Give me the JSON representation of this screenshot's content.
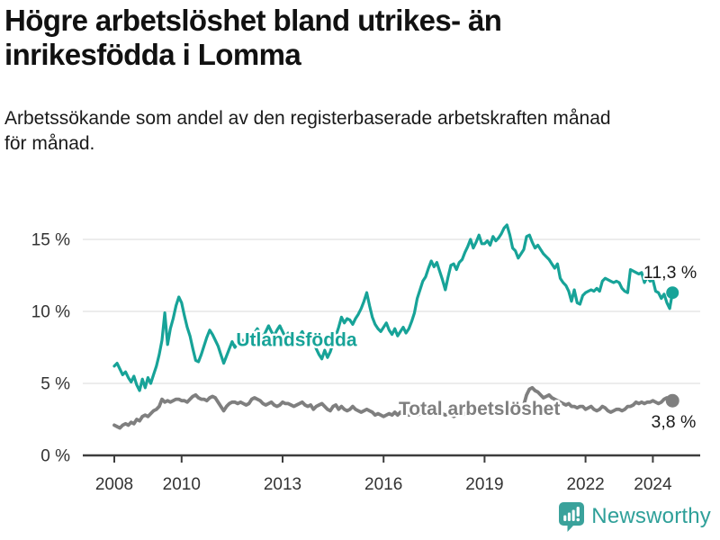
{
  "header": {
    "title_lines": [
      "Högre arbetslöshet bland utrikes- än",
      "inrikesfödda i Lomma"
    ],
    "subtitle_lines": [
      "Arbetssökande som andel av den registerbaserade arbetskraften månad",
      "för månad."
    ]
  },
  "branding": {
    "name": "Newsworthy",
    "color": "#2fa099",
    "icon": "newsworthy-speech-bubble-bar-chart-icon"
  },
  "chart_data": {
    "type": "line",
    "title": "Högre arbetslöshet bland utrikes- än inrikesfödda i Lomma",
    "subtitle": "Arbetssökande som andel av den registerbaserade arbetskraften månad för månad.",
    "x_base_year": 2008,
    "x_step_months": 1,
    "x_ticks": [
      2008,
      2010,
      2013,
      2016,
      2019,
      2022,
      2024
    ],
    "x_tick_labels": [
      "2008",
      "2010",
      "2013",
      "2016",
      "2019",
      "2022",
      "2024"
    ],
    "y_ticks": [
      0,
      5,
      10,
      15
    ],
    "y_tick_labels": [
      "0 %",
      "5 %",
      "10 %",
      "15 %"
    ],
    "ylim": [
      0,
      16.8
    ],
    "grid": true,
    "legend_position": "inline-labels",
    "series": [
      {
        "name": "Utlandsfödda",
        "color": "#17a398",
        "end_label": "11,3 %",
        "end_value": 11.3,
        "label_x_year": 2011.62,
        "label_y_pct": 7.6,
        "end_label_x_year": 2023.72,
        "end_label_y_pct": 12.3,
        "values": [
          6.2,
          6.4,
          6.0,
          5.6,
          5.8,
          5.4,
          5.1,
          5.5,
          4.9,
          4.5,
          5.3,
          4.7,
          5.4,
          5.0,
          5.6,
          6.2,
          7.0,
          8.0,
          9.9,
          7.7,
          8.8,
          9.5,
          10.4,
          11.0,
          10.6,
          9.7,
          8.9,
          8.3,
          7.4,
          6.6,
          6.5,
          7.0,
          7.6,
          8.2,
          8.7,
          8.4,
          8.0,
          7.6,
          7.0,
          6.4,
          6.9,
          7.4,
          7.9,
          7.5,
          7.8,
          8.1,
          7.9,
          8.2,
          8.4,
          8.1,
          8.5,
          8.8,
          8.5,
          8.2,
          8.6,
          9.0,
          8.6,
          8.3,
          8.7,
          9.0,
          8.6,
          8.2,
          8.5,
          8.1,
          8.4,
          8.0,
          8.3,
          8.6,
          8.2,
          8.5,
          8.1,
          7.9,
          7.4,
          7.0,
          6.7,
          7.3,
          6.8,
          7.2,
          7.8,
          8.3,
          8.9,
          9.6,
          9.2,
          9.5,
          9.4,
          9.1,
          9.5,
          9.8,
          10.2,
          10.7,
          11.3,
          10.4,
          9.6,
          9.1,
          8.8,
          8.6,
          8.9,
          9.2,
          8.7,
          8.4,
          8.8,
          8.3,
          8.6,
          8.9,
          8.5,
          8.8,
          9.3,
          9.9,
          10.9,
          11.5,
          12.1,
          12.4,
          13.0,
          13.5,
          13.1,
          13.4,
          12.8,
          12.2,
          11.5,
          12.4,
          13.2,
          13.3,
          12.9,
          13.4,
          13.6,
          14.1,
          14.5,
          15.0,
          14.4,
          14.8,
          15.3,
          14.7,
          14.7,
          14.9,
          14.6,
          15.2,
          14.9,
          15.1,
          15.4,
          15.8,
          16.0,
          15.3,
          14.4,
          14.2,
          13.7,
          14.0,
          14.3,
          15.2,
          15.3,
          14.8,
          14.4,
          14.6,
          14.3,
          14.0,
          13.8,
          13.6,
          13.3,
          13.0,
          13.3,
          12.3,
          12.0,
          11.8,
          11.4,
          10.7,
          11.5,
          10.6,
          10.5,
          11.1,
          11.3,
          11.4,
          11.5,
          11.4,
          11.6,
          11.4,
          12.1,
          12.3,
          12.2,
          12.1,
          12.0,
          12.1,
          12.0,
          11.6,
          11.4,
          11.3,
          12.9,
          12.8,
          12.7,
          12.6,
          12.7,
          12.0,
          12.4,
          12.1,
          12.2,
          11.4,
          11.3,
          10.9,
          11.2,
          10.6,
          10.2,
          11.3
        ]
      },
      {
        "name": "Total arbetslöshet",
        "color": "#7f7f7f",
        "end_label": "3,8 %",
        "end_value": 3.8,
        "label_x_year": 2016.45,
        "label_y_pct": 2.82,
        "end_label_x_year": 2023.95,
        "end_label_y_pct": 1.95,
        "values": [
          2.1,
          2.0,
          1.9,
          2.1,
          2.2,
          2.1,
          2.3,
          2.2,
          2.5,
          2.4,
          2.7,
          2.8,
          2.7,
          2.9,
          3.1,
          3.2,
          3.4,
          3.9,
          3.7,
          3.8,
          3.7,
          3.8,
          3.9,
          3.9,
          3.8,
          3.8,
          3.7,
          3.9,
          4.1,
          4.2,
          4.0,
          3.9,
          3.9,
          3.8,
          4.0,
          4.1,
          4.0,
          3.7,
          3.4,
          3.1,
          3.4,
          3.6,
          3.7,
          3.7,
          3.6,
          3.7,
          3.6,
          3.5,
          3.6,
          3.9,
          4.0,
          3.9,
          3.8,
          3.6,
          3.5,
          3.6,
          3.7,
          3.5,
          3.4,
          3.5,
          3.7,
          3.6,
          3.6,
          3.5,
          3.4,
          3.5,
          3.6,
          3.7,
          3.5,
          3.4,
          3.5,
          3.2,
          3.4,
          3.5,
          3.6,
          3.4,
          3.2,
          3.1,
          3.4,
          3.5,
          3.2,
          3.4,
          3.2,
          3.1,
          3.2,
          3.4,
          3.2,
          3.1,
          3.0,
          3.1,
          3.2,
          3.1,
          3.0,
          2.8,
          2.9,
          2.8,
          2.7,
          2.8,
          2.9,
          2.8,
          3.0,
          2.8,
          3.0,
          2.8,
          2.9,
          2.8,
          2.9,
          3.0,
          2.8,
          2.9,
          3.0,
          2.9,
          2.8,
          2.9,
          3.0,
          2.9,
          2.8,
          2.9,
          2.8,
          2.9,
          2.8,
          2.7,
          2.8,
          2.9,
          2.8,
          2.9,
          3.0,
          2.9,
          2.8,
          2.9,
          3.0,
          3.1,
          3.0,
          2.9,
          3.0,
          3.1,
          3.0,
          3.1,
          3.2,
          3.1,
          3.2,
          3.1,
          3.2,
          3.3,
          3.2,
          3.3,
          3.5,
          4.2,
          4.6,
          4.7,
          4.5,
          4.4,
          4.2,
          4.0,
          4.1,
          4.2,
          4.0,
          3.9,
          3.8,
          3.7,
          3.6,
          3.5,
          3.6,
          3.4,
          3.4,
          3.3,
          3.4,
          3.4,
          3.2,
          3.3,
          3.4,
          3.2,
          3.1,
          3.2,
          3.4,
          3.3,
          3.1,
          3.0,
          3.1,
          3.2,
          3.2,
          3.1,
          3.2,
          3.4,
          3.4,
          3.5,
          3.7,
          3.6,
          3.7,
          3.6,
          3.7,
          3.7,
          3.8,
          3.7,
          3.6,
          3.7,
          3.9,
          4.0,
          3.9,
          3.8
        ]
      }
    ]
  }
}
